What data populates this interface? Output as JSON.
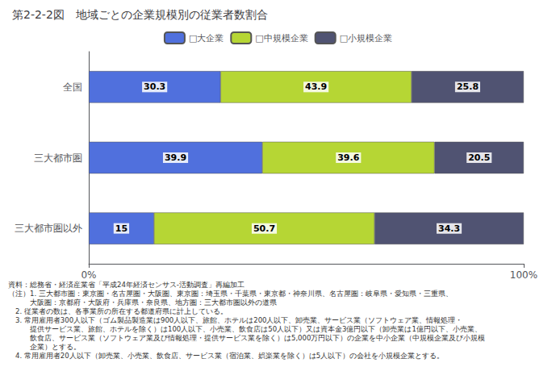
{
  "chart_data": {
    "type": "bar",
    "orientation": "horizontal",
    "stacked": true,
    "data_labels": true,
    "grid": false,
    "title": "第2-2-2図　地域ごとの企業規模別の従業者数割合",
    "categories": [
      "全国",
      "三大都市圏",
      "三大都市圏以外"
    ],
    "series": [
      {
        "name": "□大企業",
        "values": [
          30.3,
          39.9,
          15.0
        ]
      },
      {
        "name": "□中規模企業",
        "values": [
          43.9,
          39.6,
          50.7
        ]
      },
      {
        "name": "□小規模企業",
        "values": [
          25.8,
          20.5,
          34.3
        ]
      }
    ],
    "xlim": [
      0,
      100
    ],
    "xticks": [
      {
        "value": 0,
        "label": "0%"
      },
      {
        "value": 100,
        "label": "100%"
      }
    ],
    "annotations": [
      "資料：総務省・経済産業省「平成24年経済センサス-活動調査」再編加工",
      "（注）1. 三大都市圏：東京圏・名古屋圏・大阪圏、東京圏：埼玉県・千葉県・東京都・神奈川県、名古屋圏：岐阜県・愛知県・三重県、",
      "　　　大阪圏：京都府・大阪府・兵庫県・奈良県、地方圏：三大都市圏以外の道県",
      "　2. 従業者の数は、各事業所の所在する都道府県に計上している。",
      "　3. 常用雇用者300人以下（ゴム製品製造業は900人以下、旅館、ホテルは200人以下、卸売業、サービス業（ソフトウェア業、情報処理・",
      "　　　提供サービス業、旅館、ホテルを除く）は100人以下、小売業、飲食店は50人以下）又は資本金3億円以下（卸売業は1億円以下、小売業、",
      "　　　飲食店、サービス業（ソフトウェア業及び情報処理・提供サービス業を除く）は5,000万円以下）の企業を中小企業（中規模企業及び小規模",
      "　　　企業）とする。",
      "　4. 常用雇用者20人以下（卸売業、小売業、飲食店、サービス業（宿泊業、娯楽業を除く）は5人以下）の会社を小規模企業とする。"
    ]
  }
}
